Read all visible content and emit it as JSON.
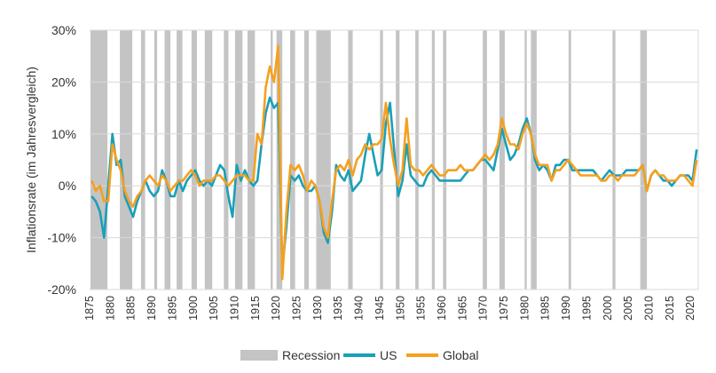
{
  "chart_data": {
    "type": "line",
    "title": "",
    "ylabel": "Inflationsrate (im Jahresvergleich)",
    "xlabel": "",
    "xlim": [
      1875,
      2022
    ],
    "ylim": [
      -20,
      30
    ],
    "yticks": [
      -20,
      -10,
      0,
      10,
      20,
      30
    ],
    "ytick_labels": [
      "-20%",
      "-10%",
      "0%",
      "10%",
      "20%",
      "30%"
    ],
    "xticks": [
      1875,
      1880,
      1885,
      1890,
      1895,
      1900,
      1905,
      1910,
      1915,
      1920,
      1925,
      1930,
      1935,
      1940,
      1945,
      1950,
      1955,
      1960,
      1965,
      1970,
      1975,
      1980,
      1985,
      1990,
      1995,
      2000,
      2005,
      2010,
      2015,
      2020
    ],
    "grid": true,
    "legend_position": "bottom",
    "legend": [
      "Recession",
      "US",
      "Global"
    ],
    "colors": {
      "recession": "#c4c4c4",
      "US": "#1a9fb8",
      "Global": "#f5a01e",
      "grid": "#d9d9d9"
    },
    "recessions": [
      [
        1875.2,
        1879.3
      ],
      [
        1882.3,
        1885.3
      ],
      [
        1887.4,
        1888.4
      ],
      [
        1890.6,
        1891.3
      ],
      [
        1893.1,
        1894.5
      ],
      [
        1896,
        1897.4
      ],
      [
        1899.6,
        1900.9
      ],
      [
        1902.8,
        1904.6
      ],
      [
        1907.4,
        1908.5
      ],
      [
        1910.1,
        1911.9
      ],
      [
        1913.1,
        1914.9
      ],
      [
        1918.7,
        1919.2
      ],
      [
        1920.1,
        1921.5
      ],
      [
        1923.4,
        1924.6
      ],
      [
        1926.8,
        1927.9
      ],
      [
        1929.7,
        1933.2
      ],
      [
        1937.4,
        1938.5
      ],
      [
        1945.1,
        1945.8
      ],
      [
        1948.9,
        1949.8
      ],
      [
        1953.6,
        1954.4
      ],
      [
        1957.6,
        1958.3
      ],
      [
        1960.3,
        1961.1
      ],
      [
        1969.9,
        1970.9
      ],
      [
        1973.9,
        1975.2
      ],
      [
        1980,
        1980.5
      ],
      [
        1981.5,
        1982.9
      ],
      [
        1990.6,
        1991.2
      ],
      [
        2001.2,
        2001.9
      ],
      [
        2007.9,
        2009.5
      ]
    ],
    "x_start": 1875,
    "series": [
      {
        "name": "US",
        "values": [
          -2,
          -3,
          -5,
          -10,
          0,
          10,
          4,
          5,
          -2,
          -4,
          -6,
          -3,
          -1,
          1,
          -1,
          -2,
          -1,
          3,
          1,
          -2,
          -2,
          1,
          -1,
          1,
          2,
          3,
          1,
          0,
          1,
          0,
          2,
          4,
          3,
          -2,
          -6,
          4,
          1,
          3,
          1,
          0,
          1,
          8,
          14,
          17,
          15,
          16,
          -16,
          -8,
          2,
          1,
          2,
          0,
          -1,
          -1,
          0,
          -3,
          -9,
          -11,
          -5,
          4,
          2,
          1,
          3,
          -1,
          0,
          1,
          6,
          10,
          6,
          2,
          3,
          12,
          16,
          7,
          -2,
          1,
          8,
          2,
          1,
          0,
          0,
          2,
          3,
          2,
          1,
          1,
          1,
          1,
          1,
          1,
          2,
          3,
          3,
          4,
          5,
          5,
          4,
          3,
          7,
          11,
          8,
          5,
          6,
          8,
          11,
          13,
          10,
          5,
          3,
          4,
          3,
          1,
          4,
          4,
          5,
          5,
          3,
          3,
          3,
          3,
          3,
          3,
          2,
          1,
          2,
          3,
          2,
          2,
          2,
          3,
          3,
          3,
          3,
          4,
          -1,
          2,
          3,
          2,
          1,
          1,
          0,
          1,
          2,
          2,
          2,
          1,
          7
        ]
      },
      {
        "name": "Global",
        "values": [
          1,
          -1,
          0,
          -3,
          -3,
          8,
          5,
          3,
          -1,
          -3,
          -4,
          -2,
          -1,
          1,
          2,
          1,
          0,
          2,
          1,
          -1,
          0,
          1,
          1,
          2,
          3,
          2,
          0,
          1,
          1,
          1,
          2,
          2,
          1,
          0,
          1,
          2,
          2,
          2,
          1,
          1,
          10,
          8,
          19,
          23,
          20,
          27,
          -18,
          -5,
          4,
          3,
          4,
          2,
          -1,
          1,
          0,
          -3,
          -8,
          -10,
          -3,
          3,
          4,
          3,
          5,
          2,
          5,
          6,
          8,
          7,
          8,
          8,
          9,
          16,
          9,
          4,
          0,
          3,
          13,
          4,
          3,
          3,
          2,
          3,
          4,
          3,
          2,
          2,
          3,
          3,
          3,
          4,
          3,
          3,
          3,
          4,
          5,
          6,
          5,
          6,
          8,
          13,
          10,
          8,
          8,
          7,
          10,
          12,
          10,
          6,
          4,
          4,
          4,
          1,
          3,
          3,
          4,
          5,
          4,
          3,
          2,
          2,
          2,
          2,
          2,
          1,
          1,
          2,
          2,
          1,
          2,
          2,
          2,
          2,
          3,
          4,
          -1,
          2,
          3,
          2,
          2,
          1,
          1,
          1,
          2,
          2,
          1,
          0,
          5
        ]
      }
    ]
  }
}
